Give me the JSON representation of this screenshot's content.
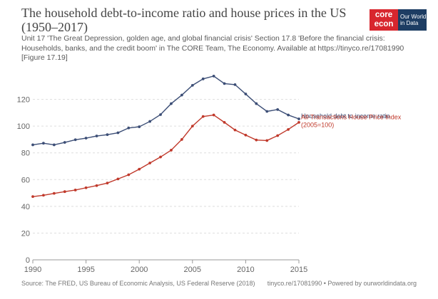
{
  "title": "The household debt-to-income ratio and house prices in the US (1950–2017)",
  "subtitle": "Unit 17 'The Great Depression, golden age, and global financial crisis' Section 17.8 'Before the financial crisis: Households, banks, and the credit boom' in The CORE Team, The Economy. Available at https://tinyco.re/17081990 [Figure 17.19]",
  "logo": {
    "core_line1": "core",
    "core_line2": "econ",
    "owid_line1": "Our World",
    "owid_line2": "in Data"
  },
  "footer": {
    "source": "Source: The FRED, US Bureau of Economic Analysis, US Federal Reserve (2018)",
    "credit": "tinyco.re/17081990 • Powered by ourworldindata.org"
  },
  "chart_data": {
    "type": "line",
    "title": "The household debt-to-income ratio and house prices in the US (1950–2017)",
    "xlabel": "",
    "ylabel": "",
    "xlim": [
      1990,
      2015
    ],
    "ylim": [
      0,
      140
    ],
    "x_ticks": [
      1990,
      1995,
      2000,
      2005,
      2010,
      2015
    ],
    "y_ticks": [
      0,
      20,
      40,
      60,
      80,
      100,
      120
    ],
    "grid": "horizontal-dashed",
    "legend": "inline-right",
    "x": [
      1990,
      1991,
      1992,
      1993,
      1994,
      1995,
      1996,
      1997,
      1998,
      1999,
      2000,
      2001,
      2002,
      2003,
      2004,
      2005,
      2006,
      2007,
      2008,
      2009,
      2010,
      2011,
      2012,
      2013,
      2014,
      2015
    ],
    "series": [
      {
        "name": "Household debt to income ratio",
        "label_lines": [
          "Household debt to income ratio"
        ],
        "color": "#3c4e76",
        "values": [
          86,
          87.2,
          86,
          87.8,
          89.8,
          91,
          92.6,
          93.6,
          95,
          98.6,
          99.5,
          103.5,
          108.6,
          116.8,
          123.2,
          130.5,
          135.3,
          137.4,
          131.8,
          131,
          124,
          116.8,
          111,
          112.4,
          108.3,
          105.4
        ]
      },
      {
        "name": "All-Transactions House Price Index (2005=100)",
        "label_lines": [
          "All-Transactions House Price Index",
          "(2005=100)"
        ],
        "color": "#c0392b",
        "values": [
          47.3,
          48.3,
          49.7,
          51,
          52.2,
          53.9,
          55.5,
          57.4,
          60.5,
          63.6,
          67.8,
          72.4,
          76.9,
          82,
          90,
          100,
          107.2,
          108.3,
          102.8,
          97.1,
          93.3,
          89.6,
          89.2,
          92.9,
          97.5,
          102.8
        ]
      }
    ]
  }
}
